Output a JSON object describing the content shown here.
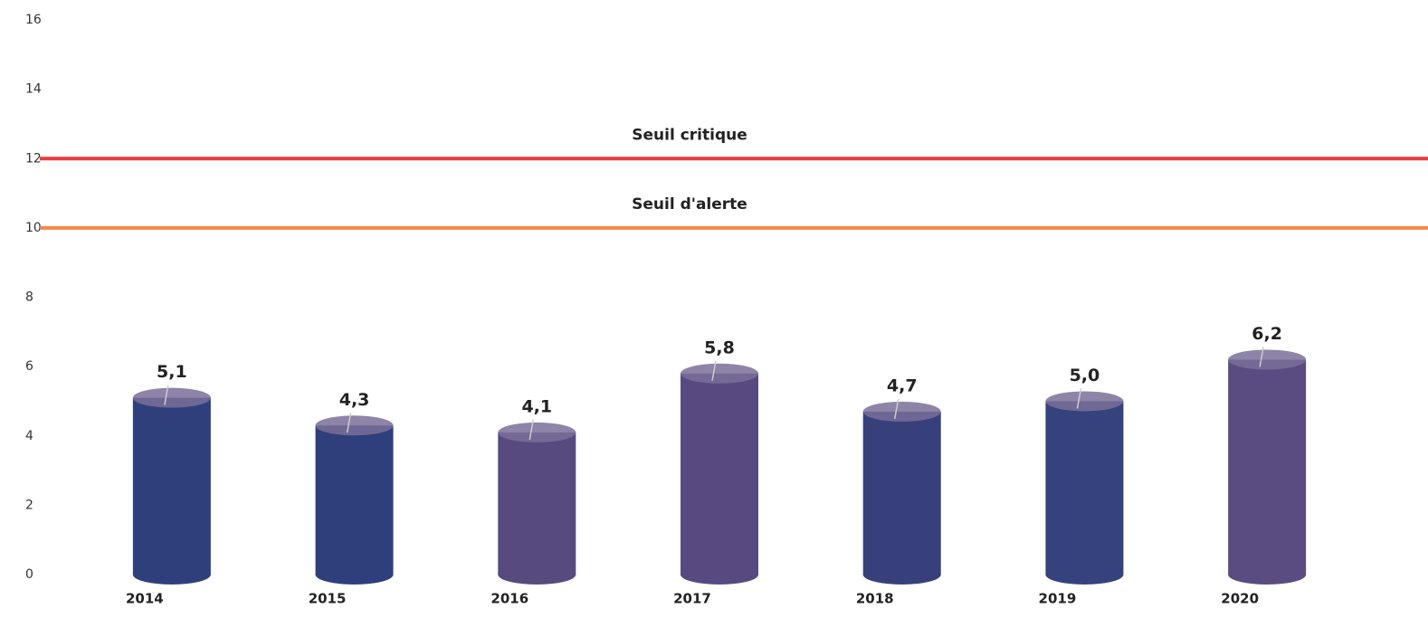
{
  "chart_data": {
    "type": "bar",
    "categories": [
      "2014",
      "2015",
      "2016",
      "2017",
      "2018",
      "2019",
      "2020"
    ],
    "values": [
      5.1,
      4.3,
      4.1,
      5.8,
      4.7,
      5.0,
      6.2
    ],
    "value_labels": [
      "5,1",
      "4,3",
      "4,1",
      "5,8",
      "4,7",
      "5,0",
      "6,2"
    ],
    "colors": [
      "#2f3f7c",
      "#2f3f7c",
      "#574a7f",
      "#584a80",
      "#38407c",
      "#35427e",
      "#5a4b80"
    ],
    "ylim": [
      0,
      16
    ],
    "yticks": [
      0,
      2,
      4,
      6,
      8,
      10,
      12,
      14,
      16
    ],
    "grid": false,
    "thresholds": [
      {
        "label": "Seuil critique",
        "value": 12,
        "color": "#ec3a3f"
      },
      {
        "label": "Seuil d'alerte",
        "value": 10,
        "color": "#f2874b"
      }
    ]
  }
}
